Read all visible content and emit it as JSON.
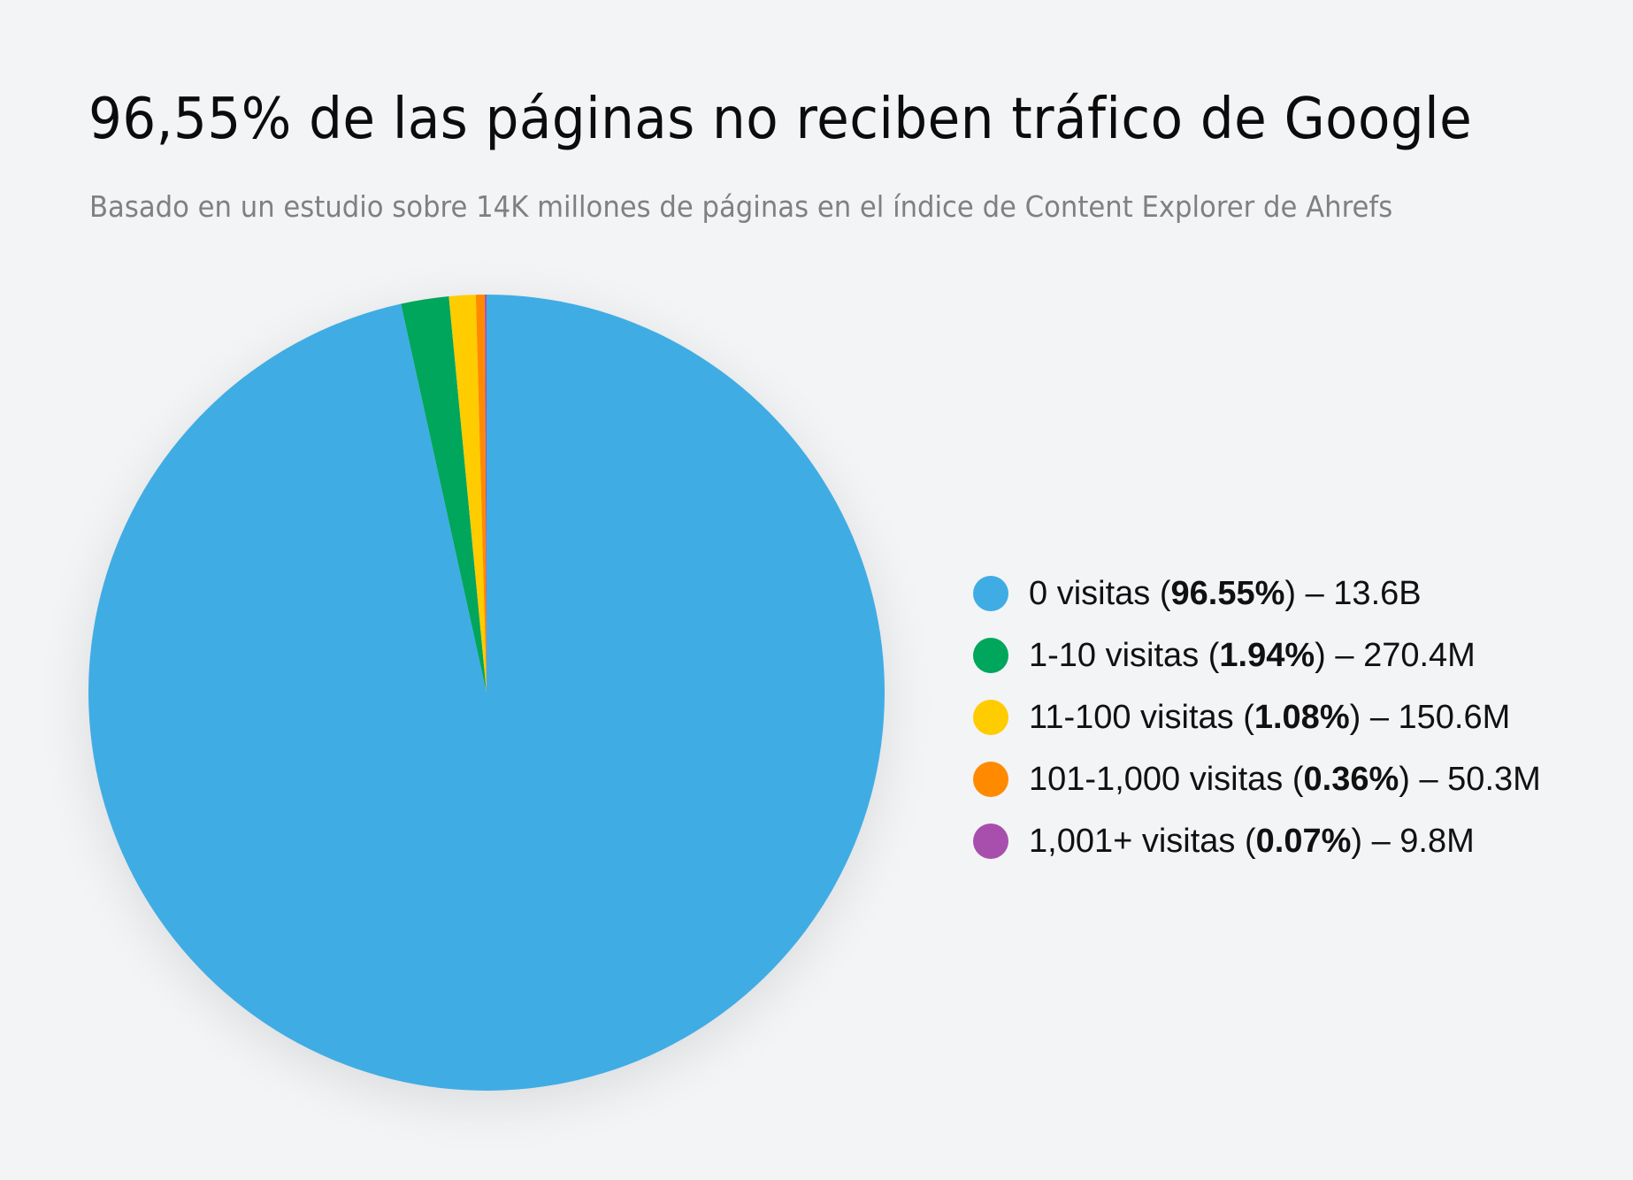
{
  "header": {
    "title": "96,55% de las páginas no reciben tráfico de Google",
    "subtitle": "Basado en un estudio sobre 14K millones de páginas en el índice de Content Explorer de Ahrefs"
  },
  "legend": {
    "items": [
      {
        "label": "0 visitas",
        "pct": "96.55%",
        "count": "13.6B",
        "color": "#40ace4"
      },
      {
        "label": "1-10 visitas",
        "pct": "1.94%",
        "count": "270.4M",
        "color": "#00a65c"
      },
      {
        "label": "11-100 visitas",
        "pct": "1.08%",
        "count": "150.6M",
        "color": "#ffcc00"
      },
      {
        "label": "101-1,000 visitas",
        "pct": "0.36%",
        "count": "50.3M",
        "color": "#ff8a00"
      },
      {
        "label": "1,001+ visitas",
        "pct": "0.07%",
        "count": "9.8M",
        "color": "#a84fae"
      }
    ]
  },
  "chart_data": {
    "type": "pie",
    "title": "96,55% de las páginas no reciben tráfico de Google",
    "subtitle": "Basado en un estudio sobre 14K millones de páginas en el índice de Content Explorer de Ahrefs",
    "categories": [
      "0 visitas",
      "1-10 visitas",
      "11-100 visitas",
      "101-1,000 visitas",
      "1,001+ visitas"
    ],
    "values": [
      96.55,
      1.94,
      1.08,
      0.36,
      0.07
    ],
    "counts": [
      "13.6B",
      "270.4M",
      "150.6M",
      "50.3M",
      "9.8M"
    ],
    "colors": [
      "#40ace4",
      "#00a65c",
      "#ffcc00",
      "#ff8a00",
      "#a84fae"
    ],
    "start_angle": "12 o'clock",
    "direction": "clockwise",
    "legend_position": "right"
  }
}
